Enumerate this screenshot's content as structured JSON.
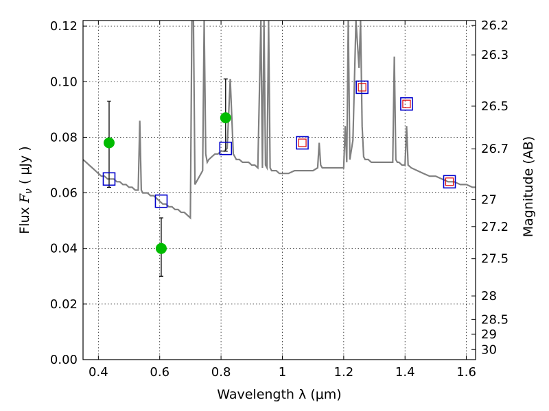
{
  "chart_data": {
    "type": "scatter",
    "xlabel": "Wavelength  λ (μm)",
    "ylabel": "Flux  F_ν  ( μJy )",
    "ylabel_parts": {
      "prefix": "Flux  ",
      "symbol": "F",
      "subscript": "ν",
      "suffix": "  ( μJy )"
    },
    "y2label": "Magnitude (AB)",
    "xlim": [
      0.35,
      1.63
    ],
    "ylim": [
      0.0,
      0.122
    ],
    "grid": true,
    "x_ticks": [
      0.4,
      0.6,
      0.8,
      1.0,
      1.2,
      1.4,
      1.6
    ],
    "x_tick_labels": [
      "0.4",
      "0.6",
      "0.8",
      "1",
      "1.2",
      "1.4",
      "1.6"
    ],
    "y_ticks": [
      0.0,
      0.02,
      0.04,
      0.06,
      0.08,
      0.1,
      0.12
    ],
    "y_tick_labels": [
      "0.00",
      "0.02",
      "0.04",
      "0.06",
      "0.08",
      "0.10",
      "0.12"
    ],
    "mag_ticks": [
      26.2,
      26.3,
      26.5,
      26.7,
      27,
      27.2,
      27.5,
      28,
      28.5,
      29,
      30
    ],
    "mag_tick_labels": [
      "26.2",
      "26.3",
      "26.5",
      "26.7",
      "27",
      "27.2",
      "27.5",
      "28",
      "28.5",
      "29",
      "30"
    ],
    "colors": {
      "model": "#808080",
      "observed": "#00bb00",
      "model_photometry": "#0000cc",
      "synthetic": "#dd0000",
      "errorbar": "#000000"
    },
    "series": [
      {
        "kind": "line",
        "x": [
          0.35,
          0.36,
          0.37,
          0.38,
          0.39,
          0.4,
          0.41,
          0.42,
          0.43,
          0.44,
          0.45,
          0.46,
          0.47,
          0.48,
          0.49,
          0.5,
          0.51,
          0.52,
          0.53,
          0.535,
          0.54,
          0.545,
          0.55,
          0.56,
          0.57,
          0.58,
          0.59,
          0.6,
          0.61,
          0.62,
          0.63,
          0.64,
          0.65,
          0.66,
          0.67,
          0.68,
          0.69,
          0.7,
          0.705,
          0.71,
          0.715,
          0.72,
          0.73,
          0.74,
          0.745,
          0.75,
          0.755,
          0.76,
          0.77,
          0.78,
          0.79,
          0.8,
          0.81,
          0.82,
          0.83,
          0.84,
          0.85,
          0.86,
          0.87,
          0.88,
          0.89,
          0.9,
          0.91,
          0.92,
          0.93,
          0.935,
          0.94,
          0.945,
          0.95,
          0.955,
          0.96,
          0.965,
          0.97,
          0.98,
          0.99,
          1.0,
          1.02,
          1.04,
          1.06,
          1.08,
          1.1,
          1.115,
          1.12,
          1.125,
          1.13,
          1.14,
          1.16,
          1.18,
          1.2,
          1.205,
          1.21,
          1.215,
          1.22,
          1.23,
          1.24,
          1.25,
          1.255,
          1.26,
          1.265,
          1.27,
          1.28,
          1.29,
          1.3,
          1.32,
          1.34,
          1.36,
          1.365,
          1.37,
          1.375,
          1.38,
          1.39,
          1.4,
          1.405,
          1.41,
          1.42,
          1.44,
          1.46,
          1.48,
          1.5,
          1.52,
          1.54,
          1.56,
          1.58,
          1.6,
          1.62,
          1.63
        ],
        "y": [
          0.072,
          0.071,
          0.07,
          0.069,
          0.068,
          0.067,
          0.066,
          0.066,
          0.065,
          0.065,
          0.065,
          0.064,
          0.064,
          0.063,
          0.063,
          0.062,
          0.062,
          0.061,
          0.061,
          0.086,
          0.061,
          0.06,
          0.06,
          0.06,
          0.059,
          0.059,
          0.058,
          0.057,
          0.056,
          0.056,
          0.055,
          0.055,
          0.054,
          0.054,
          0.053,
          0.053,
          0.052,
          0.051,
          0.122,
          0.122,
          0.063,
          0.064,
          0.066,
          0.068,
          0.122,
          0.074,
          0.071,
          0.072,
          0.073,
          0.074,
          0.074,
          0.075,
          0.075,
          0.076,
          0.101,
          0.074,
          0.072,
          0.072,
          0.071,
          0.071,
          0.071,
          0.07,
          0.07,
          0.069,
          0.122,
          0.069,
          0.122,
          0.07,
          0.069,
          0.122,
          0.069,
          0.068,
          0.068,
          0.068,
          0.067,
          0.067,
          0.067,
          0.068,
          0.068,
          0.068,
          0.068,
          0.069,
          0.078,
          0.07,
          0.069,
          0.069,
          0.069,
          0.069,
          0.069,
          0.084,
          0.071,
          0.122,
          0.072,
          0.079,
          0.122,
          0.105,
          0.122,
          0.084,
          0.073,
          0.072,
          0.072,
          0.071,
          0.071,
          0.071,
          0.071,
          0.071,
          0.109,
          0.072,
          0.071,
          0.071,
          0.07,
          0.07,
          0.084,
          0.07,
          0.069,
          0.068,
          0.067,
          0.066,
          0.066,
          0.065,
          0.064,
          0.064,
          0.063,
          0.063,
          0.062,
          0.062
        ]
      },
      {
        "kind": "points-observed",
        "x": [
          0.435,
          0.605,
          0.815
        ],
        "y": [
          0.078,
          0.04,
          0.087
        ],
        "yerr_low": [
          0.062,
          0.03,
          0.075
        ],
        "yerr_high": [
          0.093,
          0.051,
          0.101
        ]
      },
      {
        "kind": "points-model-photometry",
        "x": [
          0.435,
          0.605,
          0.815,
          1.065,
          1.26,
          1.405,
          1.545
        ],
        "y": [
          0.065,
          0.057,
          0.076,
          0.078,
          0.098,
          0.092,
          0.064
        ]
      },
      {
        "kind": "points-synthetic",
        "x": [
          1.065,
          1.26,
          1.405,
          1.545
        ],
        "y": [
          0.078,
          0.098,
          0.092,
          0.064
        ]
      }
    ]
  }
}
